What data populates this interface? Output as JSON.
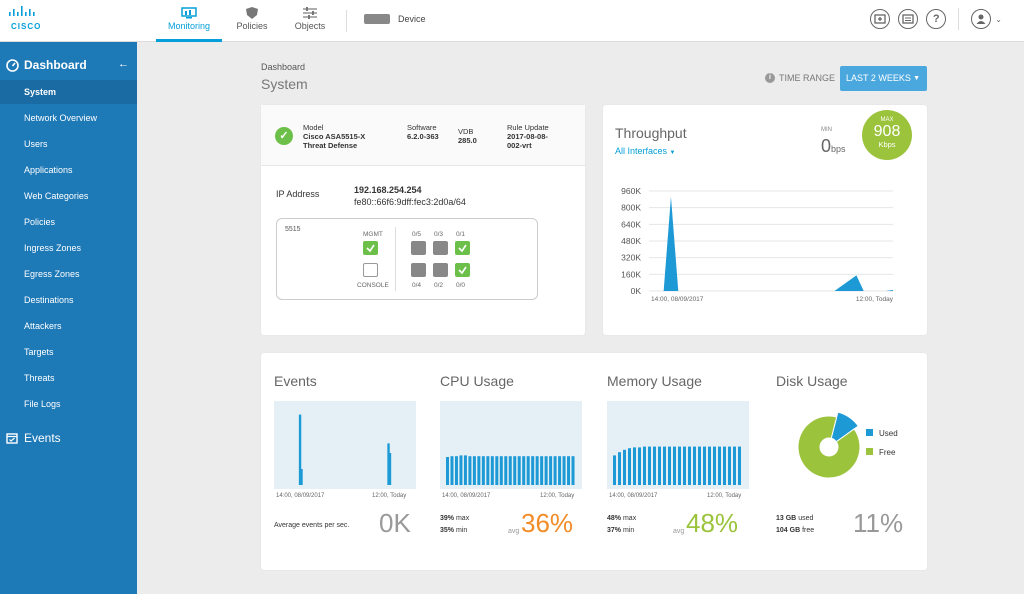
{
  "brand": {
    "logo_text": "CISCO"
  },
  "nav": {
    "tabs": [
      {
        "label": "Monitoring",
        "active": true
      },
      {
        "label": "Policies"
      },
      {
        "label": "Objects"
      }
    ],
    "device": "Device"
  },
  "sidebar": {
    "title": "Dashboard",
    "items": [
      "System",
      "Network Overview",
      "Users",
      "Applications",
      "Web Categories",
      "Policies",
      "Ingress Zones",
      "Egress Zones",
      "Destinations",
      "Attackers",
      "Targets",
      "Threats",
      "File Logs"
    ],
    "active_index": 0,
    "events": "Events"
  },
  "page": {
    "breadcrumb": "Dashboard",
    "title": "System"
  },
  "time_range": {
    "label": "TIME RANGE",
    "value": "LAST 2 WEEKS"
  },
  "system": {
    "model_label": "Model",
    "model_value": "Cisco ASA5515-X Threat Defense",
    "software_label": "Software",
    "software_value": "6.2.0-363",
    "vdb_label": "VDB",
    "vdb_value": "285.0",
    "rule_label": "Rule Update",
    "rule_value": "2017-08-08-002-vrt",
    "ip_label": "IP Address",
    "ipv4": "192.168.254.254",
    "ipv6": "fe80::66f6:9dff:fec3:2d0a/64",
    "chassis_model": "5515",
    "mgmt_label": "MGMT",
    "console_label": "CONSOLE",
    "ports_top": [
      "0/5",
      "0/3",
      "0/1"
    ],
    "ports_bottom": [
      "0/4",
      "0/2",
      "0/0"
    ]
  },
  "throughput": {
    "title": "Throughput",
    "interfaces": "All Interfaces",
    "min_label": "MIN",
    "min_value": "0",
    "min_unit": "bps",
    "max_label": "MAX",
    "max_value": "908",
    "max_unit": "Kbps"
  },
  "chart_data": [
    {
      "type": "area",
      "title": "Throughput",
      "y_tick_labels": [
        "960K",
        "800K",
        "640K",
        "480K",
        "320K",
        "160K",
        "0K"
      ],
      "ylim": [
        0,
        960
      ],
      "x_labels": [
        "14:00, 08/09/2017",
        "12:00, Today"
      ],
      "x": [
        0,
        0.06,
        0.09,
        0.12,
        0.76,
        0.85,
        0.88,
        0.97,
        1
      ],
      "values": [
        0,
        0,
        905,
        0,
        0,
        150,
        0,
        0,
        10
      ]
    },
    {
      "type": "bar",
      "title": "Events",
      "x_labels": [
        "14:00, 08/09/2017",
        "12:00, Today"
      ],
      "values": [
        0,
        0,
        0,
        0,
        0,
        0,
        0,
        0,
        0,
        0,
        0,
        0,
        0,
        88,
        20,
        0,
        0,
        0,
        0,
        0,
        0,
        0,
        0,
        0,
        0,
        0,
        0,
        0,
        0,
        0,
        0,
        0,
        0,
        0,
        0,
        0,
        0,
        0,
        0,
        0,
        0,
        0,
        0,
        0,
        0,
        0,
        0,
        0,
        0,
        0,
        0,
        0,
        0,
        0,
        0,
        0,
        0,
        0,
        0,
        0,
        0,
        0,
        0,
        0,
        0,
        0,
        0,
        0,
        0,
        0,
        0,
        0,
        0,
        0,
        52,
        40,
        0,
        0,
        0,
        0,
        0,
        0,
        0,
        0,
        0,
        0,
        0,
        0,
        0,
        0,
        0
      ]
    },
    {
      "type": "bar",
      "title": "CPU Usage",
      "x_labels": [
        "14:00, 08/09/2017",
        "12:00, Today"
      ],
      "values": [
        35,
        36,
        36,
        37,
        37,
        36,
        36,
        36,
        36,
        36,
        36,
        36,
        36,
        36,
        36,
        36,
        36,
        36,
        36,
        36,
        36,
        36,
        36,
        36,
        36,
        36,
        36,
        36,
        36
      ]
    },
    {
      "type": "bar",
      "title": "Memory Usage",
      "x_labels": [
        "14:00, 08/09/2017",
        "12:00, Today"
      ],
      "values": [
        37,
        41,
        44,
        46,
        47,
        47,
        48,
        48,
        48,
        48,
        48,
        48,
        48,
        48,
        48,
        48,
        48,
        48,
        48,
        48,
        48,
        48,
        48,
        48,
        48,
        48
      ]
    },
    {
      "type": "pie",
      "title": "Disk Usage",
      "labels": [
        "Used",
        "Free"
      ],
      "values": [
        13,
        104
      ],
      "colors": [
        "#1d9ad6",
        "#9cc33c"
      ]
    }
  ],
  "events": {
    "title": "Events",
    "caption": "Average events per sec.",
    "value": "0K"
  },
  "cpu": {
    "title": "CPU Usage",
    "max": "39%",
    "max_label": "max",
    "min": "35%",
    "min_label": "min",
    "avg_label": "avg",
    "avg": "36%",
    "color": "#f28c28"
  },
  "memory": {
    "title": "Memory Usage",
    "max": "48%",
    "max_label": "max",
    "min": "37%",
    "min_label": "min",
    "avg_label": "avg",
    "avg": "48%",
    "color": "#9cc33c"
  },
  "disk": {
    "title": "Disk Usage",
    "used": "13 GB",
    "used_label": "used",
    "free": "104 GB",
    "free_label": "free",
    "percent": "11%",
    "legend_used": "Used",
    "legend_free": "Free"
  }
}
